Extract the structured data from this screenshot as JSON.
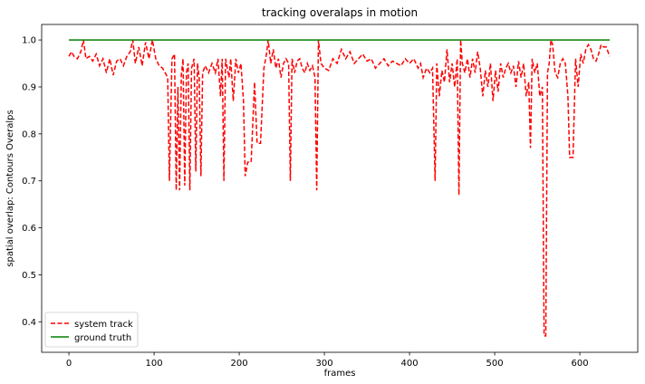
{
  "chart_data": {
    "type": "line",
    "title": "tracking overalaps in motion",
    "xlabel": "frames",
    "ylabel": "spatial overlap: Contours Overalps",
    "xlim": [
      -32,
      668
    ],
    "ylim": [
      0.335,
      1.033
    ],
    "xticks": [
      0,
      100,
      200,
      300,
      400,
      500,
      600
    ],
    "yticks": [
      0.4,
      0.5,
      0.6,
      0.7,
      0.8,
      0.9,
      1.0
    ],
    "ytick_labels": [
      "0.4",
      "0.5",
      "0.6",
      "0.7",
      "0.8",
      "0.9",
      "1.0"
    ],
    "legend_position": "lower-left",
    "grid": false,
    "series": [
      {
        "name": "system track",
        "color": "#ff0000",
        "style": "dashed",
        "points": [
          [
            0,
            0.965
          ],
          [
            3,
            0.975
          ],
          [
            6,
            0.965
          ],
          [
            10,
            0.96
          ],
          [
            14,
            0.975
          ],
          [
            17,
            1.0
          ],
          [
            20,
            0.96
          ],
          [
            24,
            0.965
          ],
          [
            28,
            0.955
          ],
          [
            32,
            0.97
          ],
          [
            36,
            0.945
          ],
          [
            40,
            0.96
          ],
          [
            44,
            0.93
          ],
          [
            48,
            0.96
          ],
          [
            52,
            0.925
          ],
          [
            56,
            0.955
          ],
          [
            60,
            0.96
          ],
          [
            64,
            0.945
          ],
          [
            68,
            0.965
          ],
          [
            72,
            0.975
          ],
          [
            75,
            1.0
          ],
          [
            78,
            0.95
          ],
          [
            82,
            0.985
          ],
          [
            86,
            0.945
          ],
          [
            90,
            0.995
          ],
          [
            94,
            0.96
          ],
          [
            98,
            1.0
          ],
          [
            102,
            0.96
          ],
          [
            106,
            0.945
          ],
          [
            110,
            0.94
          ],
          [
            113,
            0.93
          ],
          [
            116,
            0.92
          ],
          [
            118,
            0.7
          ],
          [
            121,
            0.96
          ],
          [
            124,
            0.97
          ],
          [
            126,
            0.68
          ],
          [
            128,
            0.9
          ],
          [
            130,
            0.68
          ],
          [
            132,
            0.925
          ],
          [
            134,
            0.96
          ],
          [
            136,
            0.69
          ],
          [
            138,
            0.93
          ],
          [
            140,
            0.95
          ],
          [
            142,
            0.68
          ],
          [
            144,
            0.94
          ],
          [
            147,
            0.96
          ],
          [
            149,
            0.72
          ],
          [
            151,
            0.95
          ],
          [
            153,
            0.92
          ],
          [
            155,
            0.71
          ],
          [
            157,
            0.93
          ],
          [
            160,
            0.945
          ],
          [
            164,
            0.93
          ],
          [
            168,
            0.95
          ],
          [
            172,
            0.93
          ],
          [
            175,
            0.96
          ],
          [
            178,
            0.88
          ],
          [
            180,
            0.96
          ],
          [
            182,
            0.7
          ],
          [
            184,
            0.96
          ],
          [
            186,
            0.94
          ],
          [
            188,
            0.92
          ],
          [
            190,
            0.96
          ],
          [
            193,
            0.87
          ],
          [
            196,
            0.96
          ],
          [
            199,
            0.93
          ],
          [
            202,
            0.95
          ],
          [
            205,
            0.87
          ],
          [
            207,
            0.71
          ],
          [
            210,
            0.74
          ],
          [
            214,
            0.74
          ],
          [
            218,
            0.91
          ],
          [
            221,
            0.78
          ],
          [
            225,
            0.78
          ],
          [
            229,
            0.94
          ],
          [
            232,
            0.97
          ],
          [
            234,
            1.0
          ],
          [
            237,
            0.95
          ],
          [
            240,
            0.98
          ],
          [
            243,
            0.94
          ],
          [
            246,
            0.96
          ],
          [
            249,
            0.92
          ],
          [
            252,
            0.95
          ],
          [
            255,
            0.96
          ],
          [
            258,
            0.95
          ],
          [
            260,
            0.7
          ],
          [
            262,
            0.96
          ],
          [
            265,
            0.93
          ],
          [
            268,
            0.955
          ],
          [
            271,
            0.96
          ],
          [
            274,
            0.94
          ],
          [
            277,
            0.93
          ],
          [
            280,
            0.95
          ],
          [
            283,
            0.935
          ],
          [
            286,
            0.945
          ],
          [
            289,
            0.92
          ],
          [
            291,
            0.68
          ],
          [
            293,
            1.0
          ],
          [
            296,
            0.95
          ],
          [
            300,
            0.94
          ],
          [
            305,
            0.935
          ],
          [
            310,
            0.96
          ],
          [
            315,
            0.95
          ],
          [
            320,
            0.98
          ],
          [
            325,
            0.96
          ],
          [
            330,
            0.975
          ],
          [
            335,
            0.95
          ],
          [
            340,
            0.96
          ],
          [
            345,
            0.97
          ],
          [
            350,
            0.955
          ],
          [
            355,
            0.96
          ],
          [
            360,
            0.94
          ],
          [
            365,
            0.95
          ],
          [
            370,
            0.96
          ],
          [
            375,
            0.945
          ],
          [
            380,
            0.955
          ],
          [
            385,
            0.95
          ],
          [
            390,
            0.945
          ],
          [
            395,
            0.96
          ],
          [
            400,
            0.95
          ],
          [
            405,
            0.96
          ],
          [
            410,
            0.94
          ],
          [
            413,
            0.95
          ],
          [
            416,
            0.92
          ],
          [
            420,
            0.94
          ],
          [
            424,
            0.93
          ],
          [
            427,
            0.94
          ],
          [
            430,
            0.7
          ],
          [
            432,
            0.95
          ],
          [
            435,
            0.88
          ],
          [
            438,
            0.935
          ],
          [
            441,
            0.91
          ],
          [
            444,
            0.98
          ],
          [
            447,
            0.91
          ],
          [
            450,
            0.95
          ],
          [
            453,
            0.9
          ],
          [
            456,
            0.96
          ],
          [
            458,
            0.67
          ],
          [
            460,
            1.0
          ],
          [
            462,
            0.95
          ],
          [
            465,
            0.93
          ],
          [
            468,
            0.96
          ],
          [
            471,
            0.92
          ],
          [
            474,
            0.96
          ],
          [
            477,
            0.93
          ],
          [
            480,
            0.975
          ],
          [
            483,
            0.94
          ],
          [
            486,
            0.88
          ],
          [
            489,
            0.935
          ],
          [
            492,
            0.9
          ],
          [
            495,
            0.95
          ],
          [
            498,
            0.87
          ],
          [
            501,
            0.935
          ],
          [
            504,
            0.89
          ],
          [
            507,
            0.95
          ],
          [
            510,
            0.92
          ],
          [
            513,
            0.94
          ],
          [
            516,
            0.95
          ],
          [
            519,
            0.93
          ],
          [
            522,
            0.945
          ],
          [
            525,
            0.9
          ],
          [
            528,
            0.955
          ],
          [
            531,
            0.92
          ],
          [
            534,
            0.95
          ],
          [
            537,
            0.88
          ],
          [
            540,
            0.91
          ],
          [
            542,
            0.77
          ],
          [
            544,
            0.96
          ],
          [
            547,
            0.93
          ],
          [
            550,
            0.95
          ],
          [
            553,
            0.88
          ],
          [
            556,
            0.9
          ],
          [
            558,
            0.37
          ],
          [
            560,
            0.37
          ],
          [
            562,
            0.93
          ],
          [
            564,
            0.95
          ],
          [
            566,
            1.0
          ],
          [
            568,
            0.99
          ],
          [
            571,
            0.93
          ],
          [
            574,
            0.92
          ],
          [
            577,
            0.95
          ],
          [
            580,
            0.96
          ],
          [
            583,
            0.95
          ],
          [
            586,
            0.88
          ],
          [
            588,
            0.75
          ],
          [
            590,
            0.75
          ],
          [
            592,
            0.75
          ],
          [
            595,
            0.96
          ],
          [
            598,
            0.9
          ],
          [
            601,
            0.97
          ],
          [
            604,
            0.95
          ],
          [
            607,
            0.98
          ],
          [
            610,
            0.99
          ],
          [
            613,
            0.98
          ],
          [
            616,
            0.96
          ],
          [
            619,
            0.955
          ],
          [
            622,
            0.97
          ],
          [
            625,
            0.99
          ],
          [
            628,
            0.985
          ],
          [
            631,
            0.985
          ],
          [
            635,
            0.965
          ]
        ]
      },
      {
        "name": "ground truth",
        "color": "#008000",
        "style": "solid",
        "points": [
          [
            0,
            1.0
          ],
          [
            635,
            1.0
          ]
        ]
      }
    ]
  }
}
